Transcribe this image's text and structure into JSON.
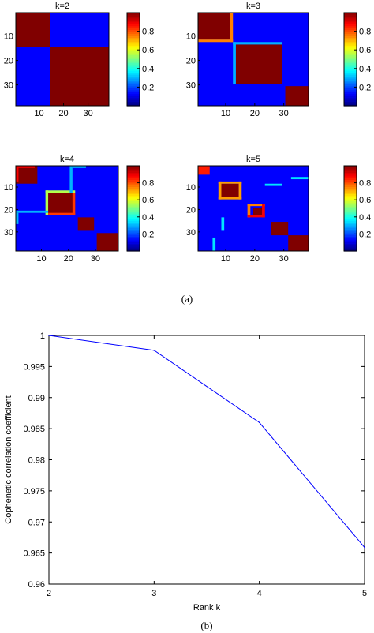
{
  "figure": {
    "caption_a": "(a)",
    "caption_b": "(b)"
  },
  "chart_data": [
    {
      "type": "heatmap",
      "title": "k=2",
      "size": 38,
      "x_ticks": [
        10,
        20,
        30
      ],
      "y_ticks": [
        10,
        20,
        30
      ],
      "colorbar": {
        "min": 0,
        "max": 1,
        "ticks": [
          "0.2",
          "0.4",
          "0.6",
          "0.8"
        ]
      },
      "blocks": [
        {
          "rows": [
            1,
            14
          ],
          "cols": [
            1,
            14
          ],
          "value": 1
        },
        {
          "rows": [
            15,
            38
          ],
          "cols": [
            15,
            38
          ],
          "value": 1
        }
      ],
      "lines": []
    },
    {
      "type": "heatmap",
      "title": "k=3",
      "size": 38,
      "x_ticks": [
        10,
        20,
        30
      ],
      "y_ticks": [
        10,
        20,
        30
      ],
      "colorbar": {
        "min": 0,
        "max": 1,
        "ticks": [
          "0.2",
          "0.4",
          "0.6",
          "0.8"
        ]
      },
      "blocks": [
        {
          "rows": [
            1,
            11
          ],
          "cols": [
            1,
            11
          ],
          "value": 1
        },
        {
          "rows": [
            14,
            29
          ],
          "cols": [
            14,
            29
          ],
          "value": 1
        },
        {
          "rows": [
            31,
            38
          ],
          "cols": [
            31,
            38
          ],
          "value": 1
        }
      ],
      "lines": [
        {
          "row": 12,
          "cols": [
            1,
            12
          ],
          "value": 0.75
        },
        {
          "col": 12,
          "rows": [
            1,
            12
          ],
          "value": 0.75
        },
        {
          "row": 13,
          "cols": [
            13,
            29
          ],
          "value": 0.3
        },
        {
          "col": 13,
          "rows": [
            13,
            29
          ],
          "value": 0.3
        }
      ]
    },
    {
      "type": "heatmap",
      "title": "k=4",
      "size": 38,
      "x_ticks": [
        10,
        20,
        30
      ],
      "y_ticks": [
        10,
        20,
        30
      ],
      "colorbar": {
        "min": 0,
        "max": 1,
        "ticks": [
          "0.2",
          "0.4",
          "0.6",
          "0.8"
        ]
      },
      "blocks": [
        {
          "rows": [
            1,
            8
          ],
          "cols": [
            1,
            8
          ],
          "value": 1
        },
        {
          "rows": [
            13,
            22
          ],
          "cols": [
            13,
            22
          ],
          "value": 1
        },
        {
          "rows": [
            24,
            29
          ],
          "cols": [
            24,
            29
          ],
          "value": 1
        },
        {
          "rows": [
            31,
            38
          ],
          "cols": [
            31,
            38
          ],
          "value": 1
        }
      ],
      "lines": [
        {
          "row": 1,
          "cols": [
            1,
            7
          ],
          "value": 0.88
        },
        {
          "col": 1,
          "rows": [
            1,
            7
          ],
          "value": 0.88
        },
        {
          "row": 12,
          "cols": [
            12,
            22
          ],
          "value": 0.55
        },
        {
          "col": 12,
          "rows": [
            12,
            22
          ],
          "value": 0.55
        },
        {
          "row": 22,
          "cols": [
            13,
            22
          ],
          "value": 0.82
        },
        {
          "col": 22,
          "rows": [
            13,
            22
          ],
          "value": 0.82
        },
        {
          "row": 21,
          "cols": [
            1,
            12
          ],
          "value": 0.3
        },
        {
          "col": 21,
          "rows": [
            1,
            12
          ],
          "value": 0.3
        },
        {
          "row": 1,
          "cols": [
            22,
            26
          ],
          "value": 0.3
        },
        {
          "col": 1,
          "rows": [
            22,
            26
          ],
          "value": 0.3
        }
      ]
    },
    {
      "type": "heatmap",
      "title": "k=5",
      "size": 38,
      "x_ticks": [
        10,
        20,
        30
      ],
      "y_ticks": [
        10,
        20,
        30
      ],
      "colorbar": {
        "min": 0,
        "max": 1,
        "ticks": [
          "0.2",
          "0.4",
          "0.6",
          "0.8"
        ]
      },
      "blocks": [
        {
          "rows": [
            1,
            4
          ],
          "cols": [
            1,
            4
          ],
          "value": 0.85
        },
        {
          "rows": [
            9,
            14
          ],
          "cols": [
            9,
            14
          ],
          "value": 1
        },
        {
          "rows": [
            20,
            22
          ],
          "cols": [
            20,
            22
          ],
          "value": 1
        },
        {
          "rows": [
            26,
            31
          ],
          "cols": [
            26,
            31
          ],
          "value": 1
        },
        {
          "rows": [
            32,
            38
          ],
          "cols": [
            32,
            38
          ],
          "value": 1
        }
      ],
      "lines": [
        {
          "row": 8,
          "cols": [
            8,
            15
          ],
          "value": 0.72
        },
        {
          "col": 8,
          "rows": [
            8,
            15
          ],
          "value": 0.72
        },
        {
          "row": 15,
          "cols": [
            8,
            15
          ],
          "value": 0.72
        },
        {
          "col": 15,
          "rows": [
            8,
            15
          ],
          "value": 0.72
        },
        {
          "row": 18,
          "cols": [
            18,
            23
          ],
          "value": 0.75
        },
        {
          "col": 18,
          "rows": [
            18,
            23
          ],
          "value": 0.75
        },
        {
          "row": 23,
          "cols": [
            18,
            23
          ],
          "value": 0.88
        },
        {
          "col": 23,
          "rows": [
            18,
            23
          ],
          "value": 0.88
        },
        {
          "row": 9,
          "cols": [
            24,
            29
          ],
          "value": 0.35
        },
        {
          "col": 9,
          "rows": [
            24,
            29
          ],
          "value": 0.35
        },
        {
          "row": 6,
          "cols": [
            33,
            38
          ],
          "value": 0.35
        },
        {
          "col": 6,
          "rows": [
            33,
            38
          ],
          "value": 0.35
        }
      ]
    },
    {
      "type": "line",
      "title": "",
      "xlabel": "Rank k",
      "ylabel": "Cophenetic correlation coefficient",
      "xlim": [
        2,
        5
      ],
      "ylim": [
        0.96,
        1
      ],
      "x_ticks": [
        "2",
        "3",
        "4",
        "5"
      ],
      "y_ticks": [
        "0.96",
        "0.965",
        "0.97",
        "0.975",
        "0.98",
        "0.985",
        "0.99",
        "0.995",
        "1"
      ],
      "series": [
        {
          "x": [
            2,
            3,
            4,
            5
          ],
          "values": [
            1.0,
            0.9976,
            0.986,
            0.9659
          ]
        }
      ],
      "colors": {
        "line": "#0000ff"
      }
    }
  ]
}
